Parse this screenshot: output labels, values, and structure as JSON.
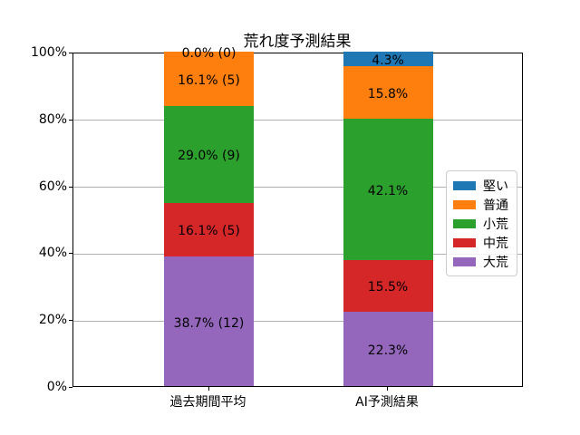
{
  "title": "荒れ度予測結果",
  "colors": {
    "grid": "#b0b0b0",
    "spine": "#000000",
    "text": "#000000",
    "background": "#ffffff"
  },
  "chart_data": {
    "type": "bar",
    "stacked": true,
    "orientation": "vertical",
    "title": "荒れ度予測結果",
    "xlabel": "",
    "ylabel": "",
    "categories": [
      "過去期間平均",
      "AI予測結果"
    ],
    "series": [
      {
        "name": "大荒",
        "color": "#9467bd",
        "values": [
          38.7,
          22.3
        ],
        "labels": [
          "38.7% (12)",
          "22.3%"
        ]
      },
      {
        "name": "中荒",
        "color": "#d62728",
        "values": [
          16.1,
          15.5
        ],
        "labels": [
          "16.1% (5)",
          "15.5%"
        ]
      },
      {
        "name": "小荒",
        "color": "#2ca02c",
        "values": [
          29.0,
          42.1
        ],
        "labels": [
          "29.0% (9)",
          "42.1%"
        ]
      },
      {
        "name": "普通",
        "color": "#ff7f0e",
        "values": [
          16.1,
          15.8
        ],
        "labels": [
          "16.1% (5)",
          "15.8%"
        ]
      },
      {
        "name": "堅い",
        "color": "#1f77b4",
        "values": [
          0.0,
          4.3
        ],
        "labels": [
          "0.0% (0)",
          "4.3%"
        ]
      }
    ],
    "legend_order_top_to_bottom": [
      "堅い",
      "普通",
      "小荒",
      "中荒",
      "大荒"
    ],
    "legend_position": "center right",
    "y_ticks": [
      {
        "value": 0,
        "label": "0%"
      },
      {
        "value": 20,
        "label": "20%"
      },
      {
        "value": 40,
        "label": "40%"
      },
      {
        "value": 60,
        "label": "60%"
      },
      {
        "value": 80,
        "label": "80%"
      },
      {
        "value": 100,
        "label": "100%"
      }
    ],
    "ylim": [
      0,
      100
    ],
    "grid": true
  }
}
